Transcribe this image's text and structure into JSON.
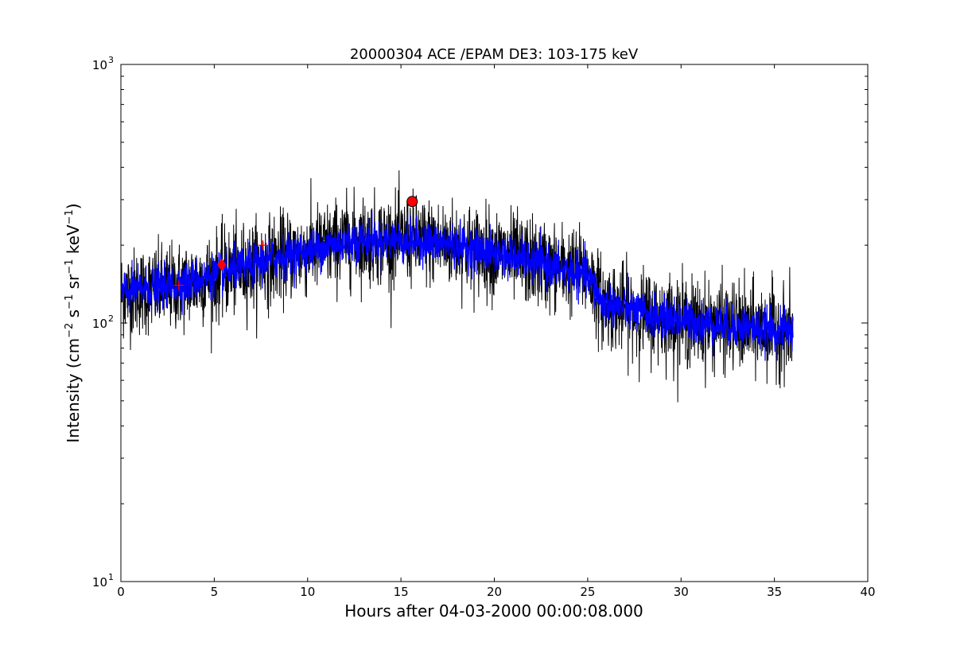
{
  "chart_data": {
    "type": "line",
    "title": "20000304 ACE /EPAM DE3: 103-175 keV",
    "xlabel": "Hours after 04-03-2000 00:00:08.000",
    "ylabel": "Intensity (cm⁻² s⁻¹ sr⁻¹ keV⁻¹)",
    "ylabel_parts": [
      "Intensity (cm",
      "−2",
      " s",
      "−1",
      " sr",
      "−1",
      " keV",
      "−1",
      ")"
    ],
    "xlim": [
      0,
      40
    ],
    "ylim": [
      10,
      1000
    ],
    "yscale": "log",
    "grid": false,
    "x_ticks": [
      "0",
      "5",
      "10",
      "15",
      "20",
      "25",
      "30",
      "35",
      "40"
    ],
    "y_ticks": [
      {
        "base": "10",
        "exp": "1"
      },
      {
        "base": "10",
        "exp": "2"
      },
      {
        "base": "10",
        "exp": "3"
      }
    ],
    "series": [
      {
        "color": "#000000",
        "x_start": 0,
        "x_end": 36,
        "profile": [
          {
            "x": 0,
            "y": 130
          },
          {
            "x": 3,
            "y": 138
          },
          {
            "x": 5,
            "y": 152
          },
          {
            "x": 8,
            "y": 175
          },
          {
            "x": 10,
            "y": 190
          },
          {
            "x": 12.5,
            "y": 210
          },
          {
            "x": 15.5,
            "y": 210
          },
          {
            "x": 18,
            "y": 200
          },
          {
            "x": 21,
            "y": 180
          },
          {
            "x": 23,
            "y": 165
          },
          {
            "x": 25,
            "y": 155
          },
          {
            "x": 25.8,
            "y": 120
          },
          {
            "x": 28,
            "y": 108
          },
          {
            "x": 31,
            "y": 100
          },
          {
            "x": 34,
            "y": 95
          },
          {
            "x": 36,
            "y": 93
          }
        ],
        "scatter_log10": 0.085
      },
      {
        "color": "#0000ff",
        "x_start": 0,
        "x_end": 36,
        "profile": [
          {
            "x": 0,
            "y": 132
          },
          {
            "x": 3,
            "y": 140
          },
          {
            "x": 5,
            "y": 153
          },
          {
            "x": 8,
            "y": 176
          },
          {
            "x": 10,
            "y": 190
          },
          {
            "x": 12.5,
            "y": 210
          },
          {
            "x": 15.5,
            "y": 208
          },
          {
            "x": 18,
            "y": 200
          },
          {
            "x": 21,
            "y": 180
          },
          {
            "x": 23,
            "y": 165
          },
          {
            "x": 25,
            "y": 152
          },
          {
            "x": 25.8,
            "y": 120
          },
          {
            "x": 28,
            "y": 108
          },
          {
            "x": 31,
            "y": 100
          },
          {
            "x": 34,
            "y": 95
          },
          {
            "x": 36,
            "y": 93
          }
        ],
        "scatter_log10": 0.04
      }
    ],
    "markers": [
      {
        "name": "peak-circle-marker",
        "x": 15.6,
        "y": 295,
        "shape": "circle",
        "color": "#ff0000"
      },
      {
        "name": "diamond-marker",
        "x": 5.4,
        "y": 168,
        "shape": "diamond",
        "color": "#ff0000"
      },
      {
        "name": "plus-marker-1",
        "x": 3.1,
        "y": 140,
        "shape": "plus",
        "color": "#ff0000"
      },
      {
        "name": "plus-marker-2",
        "x": 7.6,
        "y": 200,
        "shape": "plus",
        "color": "#ff0000"
      }
    ]
  }
}
